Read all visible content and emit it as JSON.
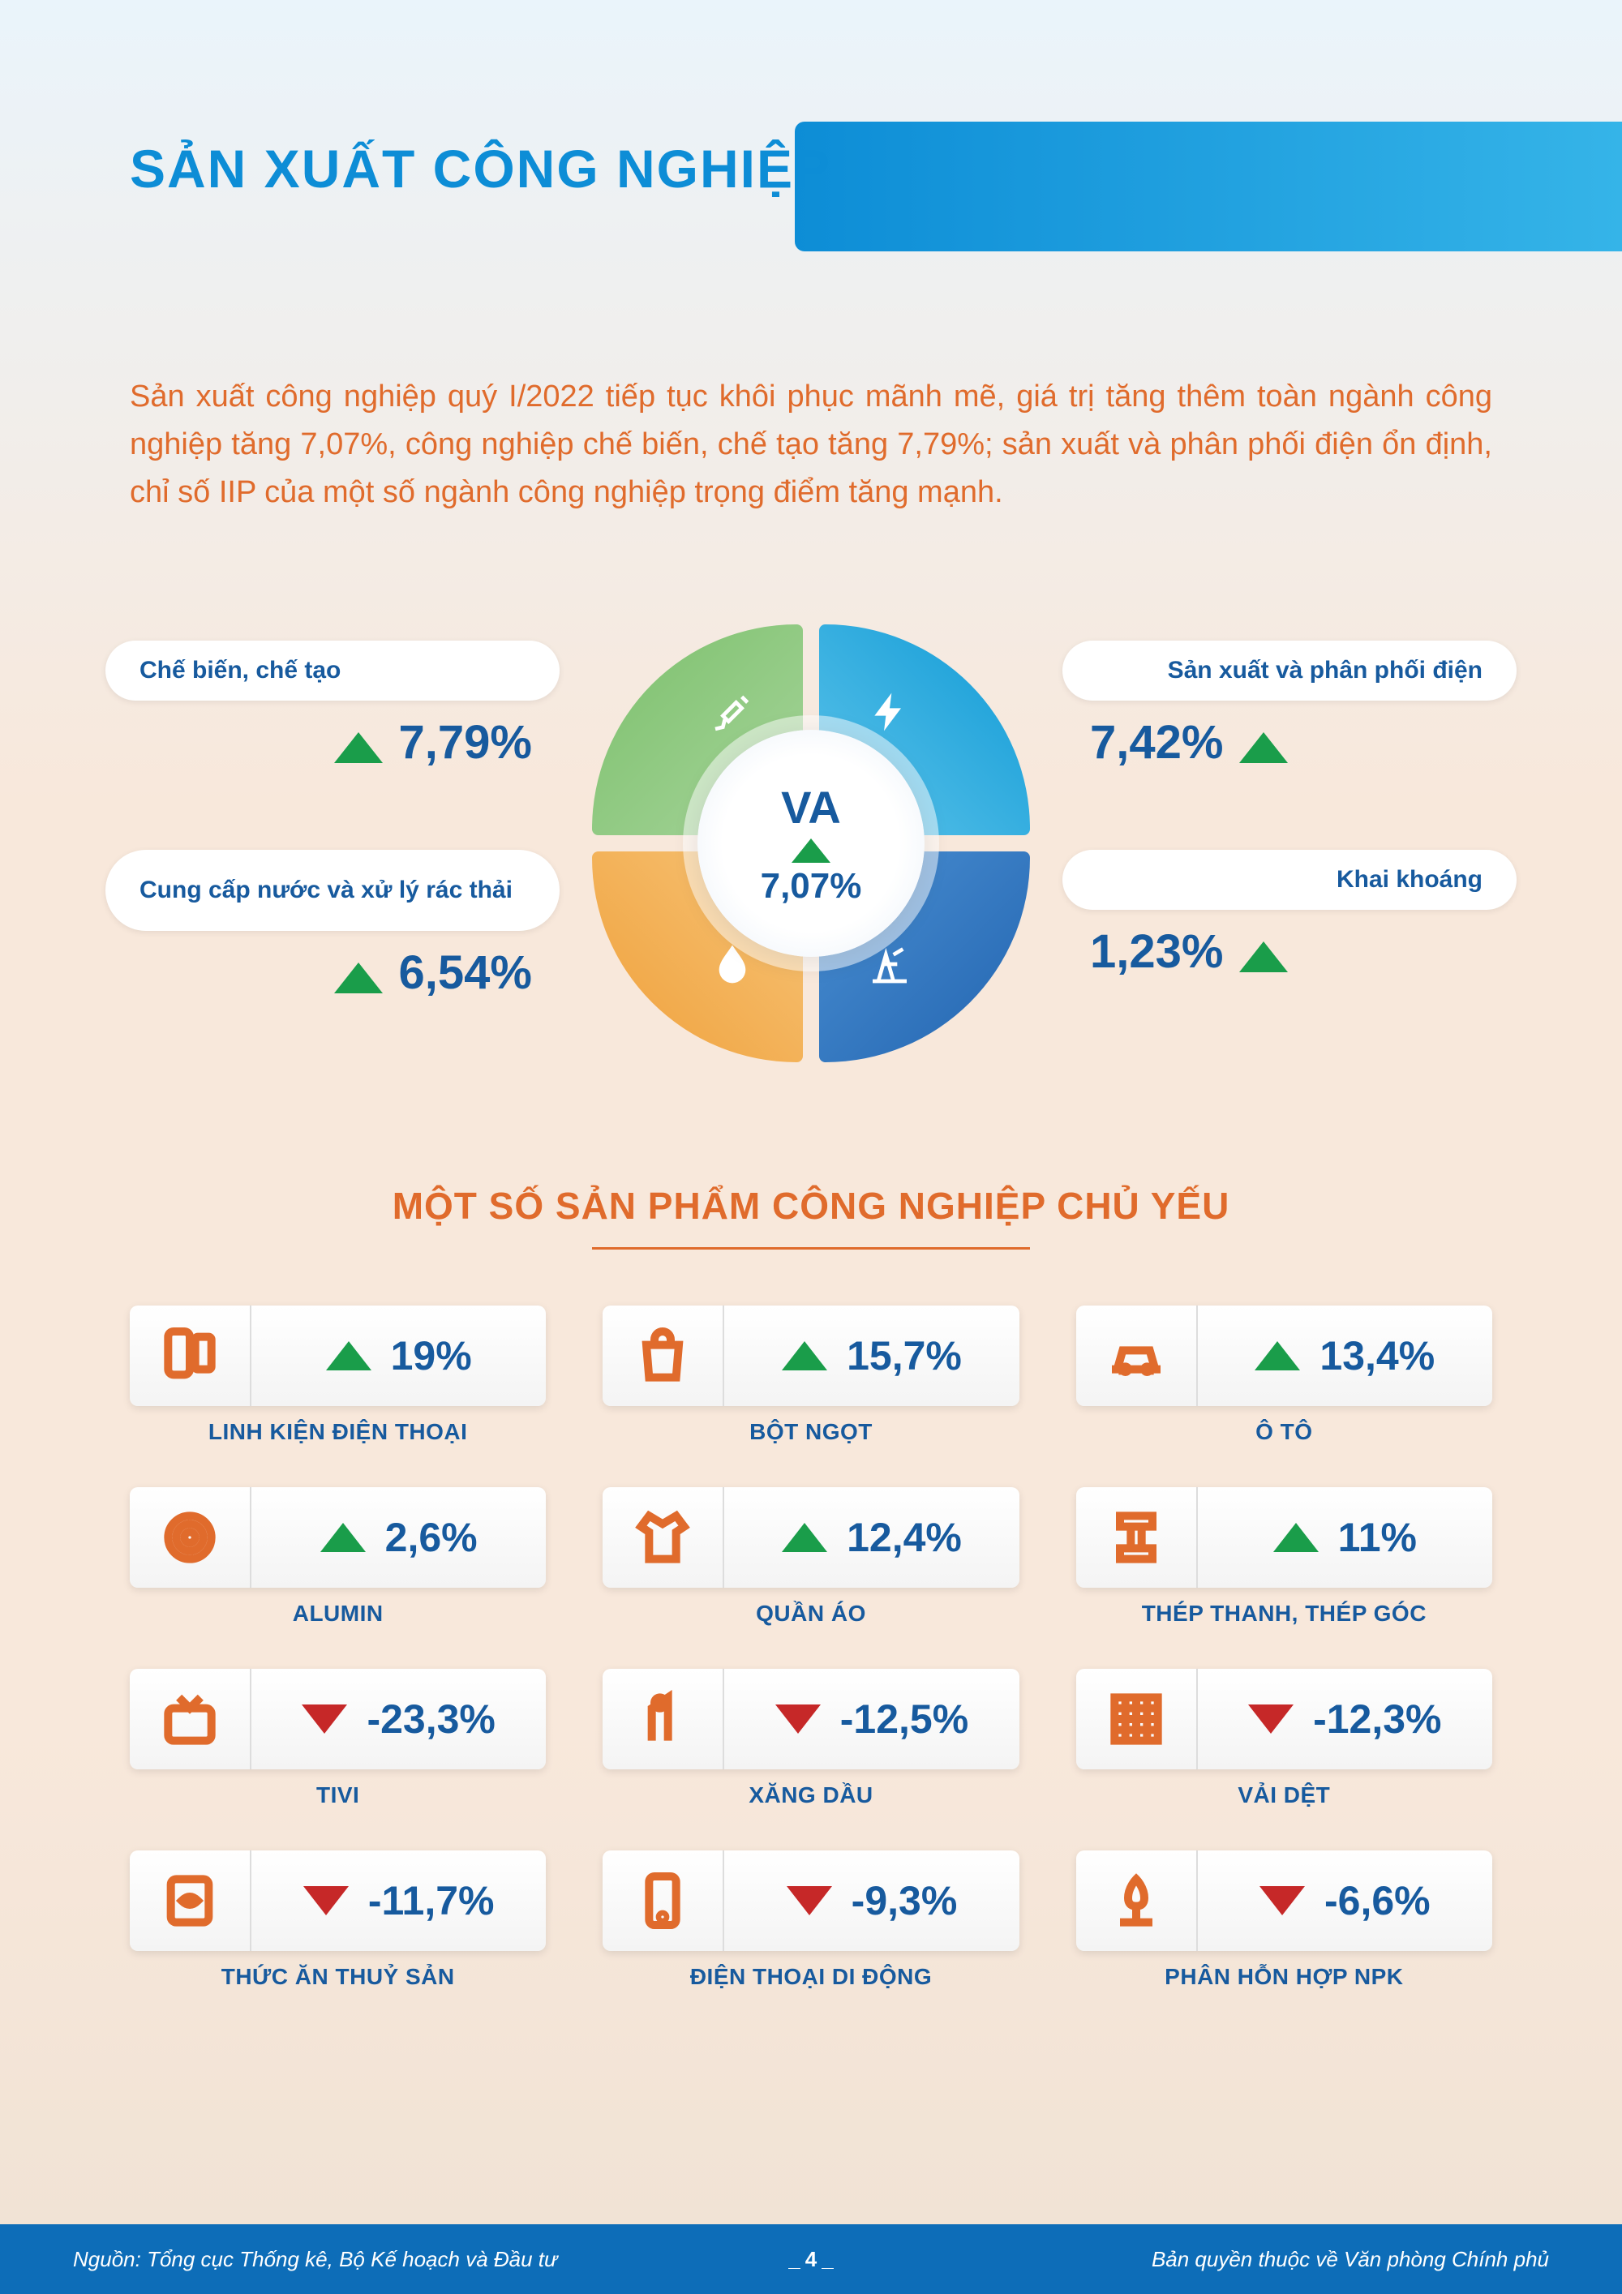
{
  "title": "SẢN XUẤT CÔNG NGHIỆP",
  "intro": "Sản xuất công nghiệp quý I/2022 tiếp tục khôi phục mãnh mẽ, giá trị tăng thêm toàn ngành công nghiệp tăng 7,07%, công nghiệp chế biến, chế tạo tăng 7,79%; sản xuất và phân phối điện ổn định, chỉ số IIP của một số ngành công nghiệp trọng điểm tăng mạnh.",
  "center": {
    "label": "VA",
    "value": "7,07%"
  },
  "sectors": {
    "tl": {
      "label": "Chế biến, chế tạo",
      "value": "7,79%",
      "icon": "tools",
      "color": "#87c07a"
    },
    "tr": {
      "label": "Sản xuất và phân phối điện",
      "value": "7,42%",
      "icon": "bolt",
      "color": "#35b4e8"
    },
    "bl": {
      "label": "Cung cấp nước và xử lý rác thải",
      "value": "6,54%",
      "icon": "drop",
      "color": "#f0a03a"
    },
    "br": {
      "label": "Khai khoáng",
      "value": "1,23%",
      "icon": "pump",
      "color": "#2264b0"
    }
  },
  "products_title": "MỘT SỐ SẢN PHẨM CÔNG NGHIỆP CHỦ YẾU",
  "products": [
    {
      "name": "LINH KIỆN ĐIỆN THOẠI",
      "value": "19%",
      "dir": "up",
      "icon": "phone-parts"
    },
    {
      "name": "BỘT NGỌT",
      "value": "15,7%",
      "dir": "up",
      "icon": "bag"
    },
    {
      "name": "Ô TÔ",
      "value": "13,4%",
      "dir": "up",
      "icon": "car"
    },
    {
      "name": "ALUMIN",
      "value": "2,6%",
      "dir": "up",
      "icon": "coil"
    },
    {
      "name": "QUẦN ÁO",
      "value": "12,4%",
      "dir": "up",
      "icon": "shirt"
    },
    {
      "name": "THÉP THANH, THÉP GÓC",
      "value": "11%",
      "dir": "up",
      "icon": "steel"
    },
    {
      "name": "TIVI",
      "value": "-23,3%",
      "dir": "down",
      "icon": "tv"
    },
    {
      "name": "XĂNG DẦU",
      "value": "-12,5%",
      "dir": "down",
      "icon": "fuel"
    },
    {
      "name": "VẢI DỆT",
      "value": "-12,3%",
      "dir": "down",
      "icon": "fabric"
    },
    {
      "name": "THỨC ĂN THUỶ SẢN",
      "value": "-11,7%",
      "dir": "down",
      "icon": "fish-feed"
    },
    {
      "name": "ĐIỆN THOẠI DI ĐỘNG",
      "value": "-9,3%",
      "dir": "down",
      "icon": "mobile"
    },
    {
      "name": "PHÂN HỖN HỢP NPK",
      "value": "-6,6%",
      "dir": "down",
      "icon": "fertilizer"
    }
  ],
  "footer": {
    "source": "Nguồn: Tổng cục Thống kê, Bộ Kế hoạch và Đầu tư",
    "page": "4",
    "copyright": "Bản quyền thuộc về Văn phòng Chính phủ"
  },
  "colors": {
    "primary_blue": "#0d8dd6",
    "dark_blue_text": "#175a9e",
    "orange": "#e06b2c",
    "tri_up": "#1a9d4a",
    "tri_down": "#c62828",
    "footer_bg": "#0d6db8"
  }
}
